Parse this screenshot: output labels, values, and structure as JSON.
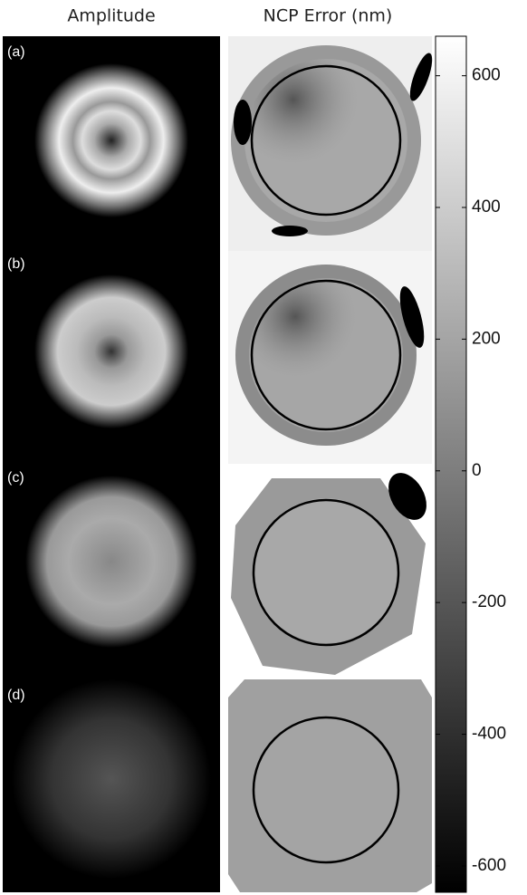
{
  "columns": [
    "Amplitude",
    "NCP Error (nm)"
  ],
  "panels": [
    "(a)",
    "(b)",
    "(c)",
    "(d)"
  ],
  "colorbar": {
    "ylim": [
      -640,
      660
    ],
    "yticks": [
      -600,
      -400,
      -200,
      0,
      200,
      400,
      600
    ]
  }
}
